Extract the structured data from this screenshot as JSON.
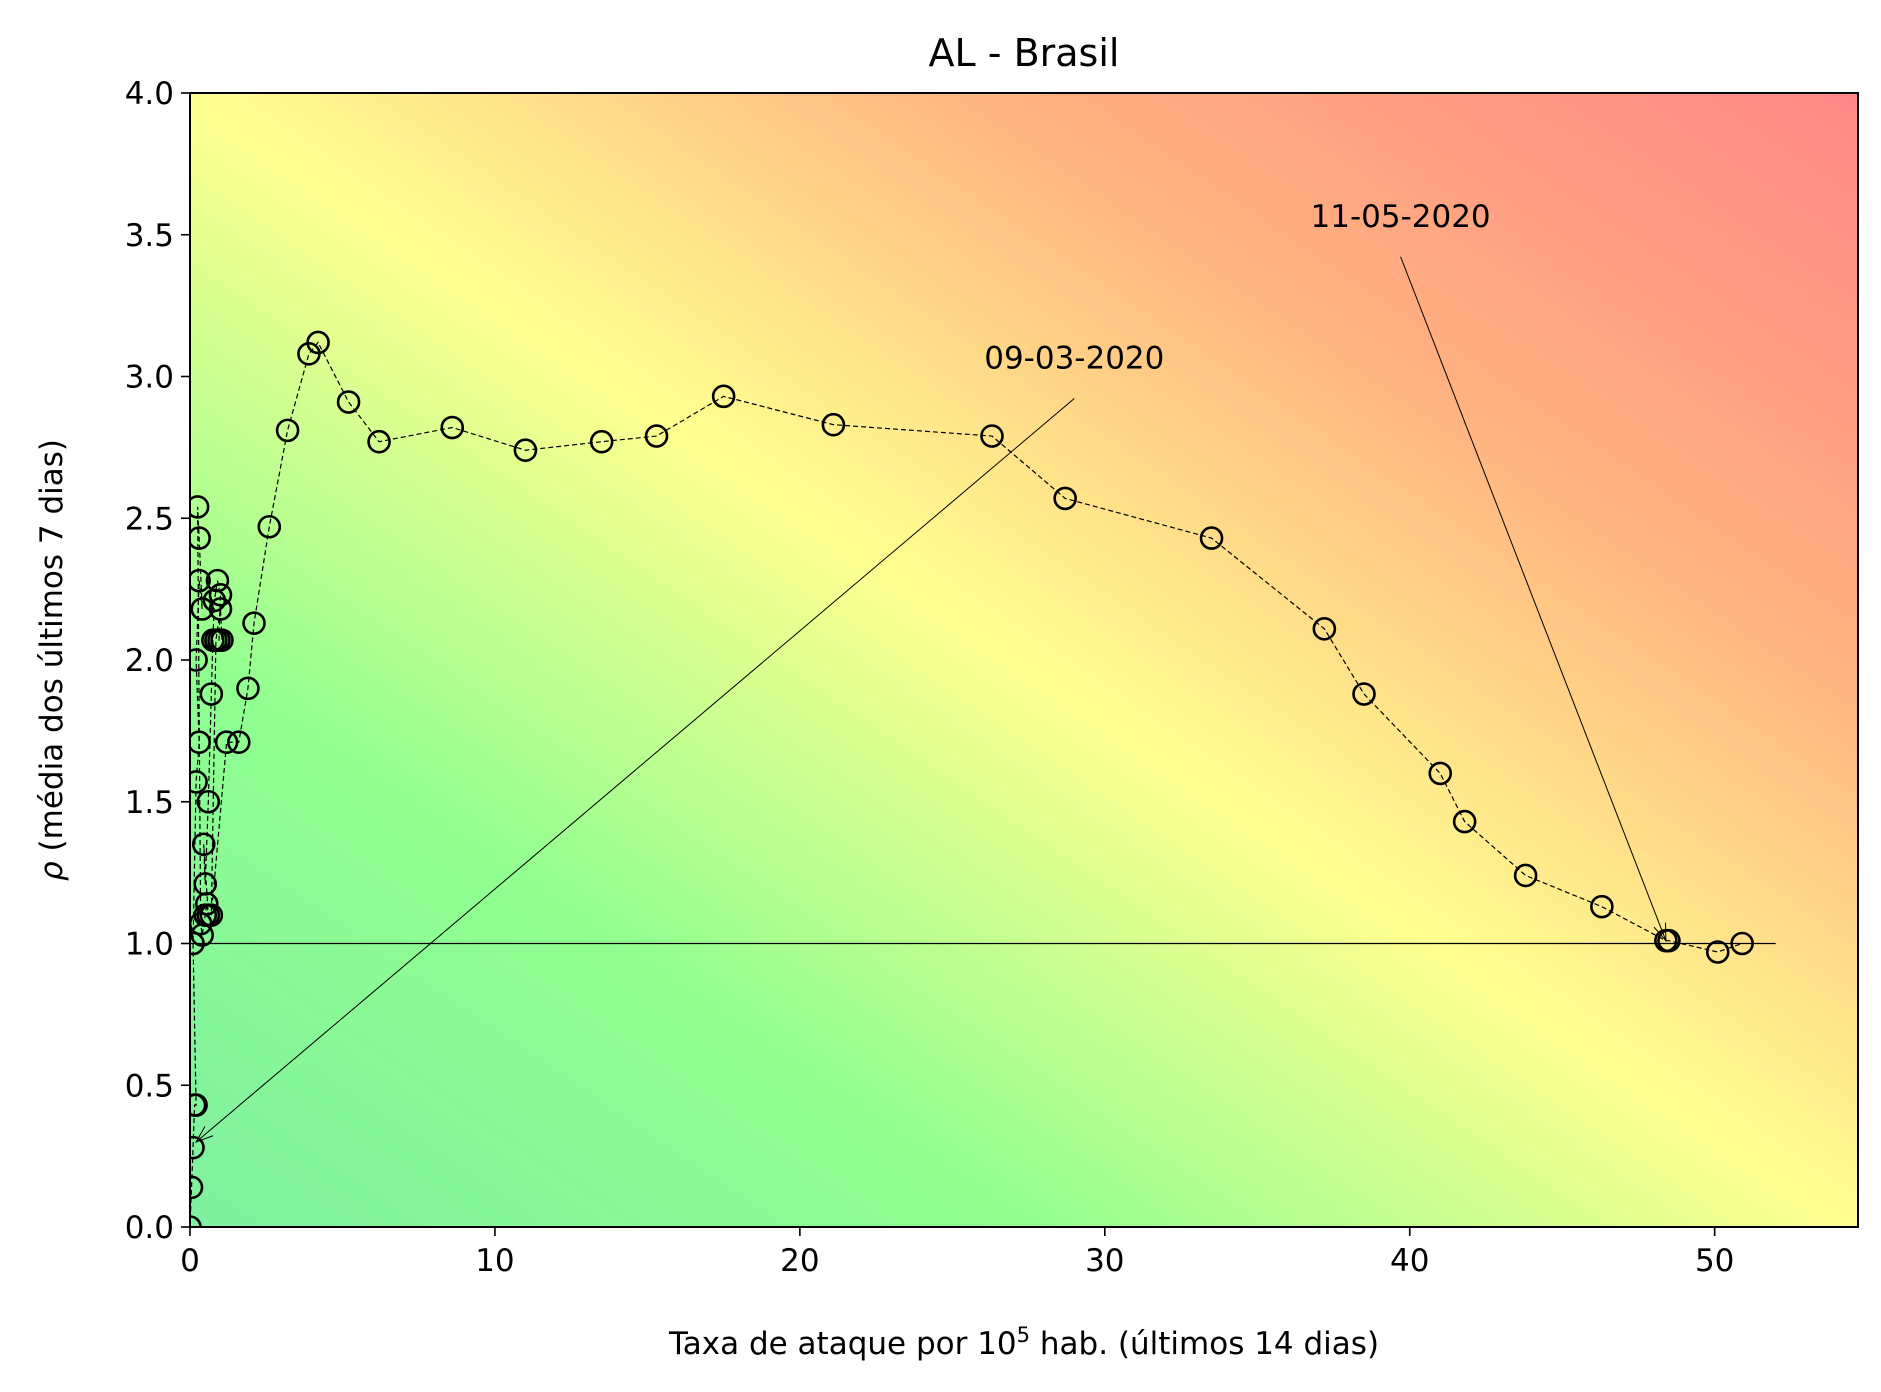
{
  "chart_data": {
    "type": "scatter",
    "title": "AL - Brasil",
    "xlabel": {
      "prefix": "Taxa de ataque por 10",
      "superscript": "5",
      "suffix": " hab. (últimos 14 dias)"
    },
    "ylabel": {
      "symbol": "ρ",
      "text": " (média dos últimos 7 dias)"
    },
    "xlim": [
      0,
      54.7
    ],
    "ylim": [
      0,
      4.0
    ],
    "x_ticks": [
      0,
      10,
      20,
      30,
      40,
      50
    ],
    "x_tick_labels": [
      "0",
      "10",
      "20",
      "30",
      "40",
      "50"
    ],
    "y_ticks": [
      0.0,
      0.5,
      1.0,
      1.5,
      2.0,
      2.5,
      3.0,
      3.5,
      4.0
    ],
    "y_tick_labels": [
      "0.0",
      "0.5",
      "1.0",
      "1.5",
      "2.0",
      "2.5",
      "3.0",
      "3.5",
      "4.0"
    ],
    "reference_line": {
      "y": 1.0,
      "x_range": [
        0,
        52
      ]
    },
    "background": {
      "description_colors": [
        "#80f0a0",
        "#90ff90",
        "#ffff90",
        "#ffb080",
        "#ff8888"
      ]
    },
    "marker_color": "#000000",
    "line_style": "dashed",
    "series": [
      {
        "x": [
          0.0,
          0.05,
          0.1,
          0.15,
          0.2,
          0.1,
          0.2,
          0.3,
          0.2,
          0.3,
          0.4,
          0.3,
          0.25,
          0.35,
          0.4,
          0.5,
          0.55,
          0.6,
          0.45,
          0.5,
          0.6,
          0.7,
          0.75,
          0.8,
          0.9,
          1.0,
          0.95,
          1.05,
          1.0,
          0.85,
          0.7,
          1.2,
          1.6,
          1.9,
          2.1,
          2.6,
          3.2,
          3.9,
          4.2,
          5.2,
          6.2,
          8.6,
          11.0,
          13.5,
          15.3,
          17.5,
          21.1,
          26.3,
          28.7,
          33.5,
          37.2,
          38.5,
          41.0,
          41.8,
          43.8,
          46.3,
          48.4,
          48.5,
          50.1,
          50.9
        ],
        "y": [
          0.0,
          0.14,
          0.28,
          0.43,
          0.43,
          1.0,
          1.57,
          1.71,
          2.0,
          2.28,
          2.18,
          2.43,
          2.54,
          1.07,
          1.03,
          1.1,
          1.14,
          1.1,
          1.35,
          1.21,
          1.5,
          1.88,
          2.07,
          2.21,
          2.28,
          2.23,
          2.07,
          2.07,
          2.18,
          2.07,
          1.1,
          1.71,
          1.71,
          1.9,
          2.13,
          2.47,
          2.81,
          3.08,
          3.12,
          2.91,
          2.77,
          2.82,
          2.74,
          2.77,
          2.79,
          2.93,
          2.83,
          2.79,
          2.57,
          2.43,
          2.11,
          1.88,
          1.6,
          1.43,
          1.24,
          1.13,
          1.01,
          1.01,
          0.97,
          1.0
        ]
      }
    ],
    "annotations": [
      {
        "text": "09-03-2020",
        "point": [
          0.2,
          0.3
        ],
        "label_anchor": [
          29.0,
          3.0
        ]
      },
      {
        "text": "11-05-2020",
        "point": [
          48.4,
          1.01
        ],
        "label_anchor": [
          39.7,
          3.5
        ]
      }
    ]
  }
}
